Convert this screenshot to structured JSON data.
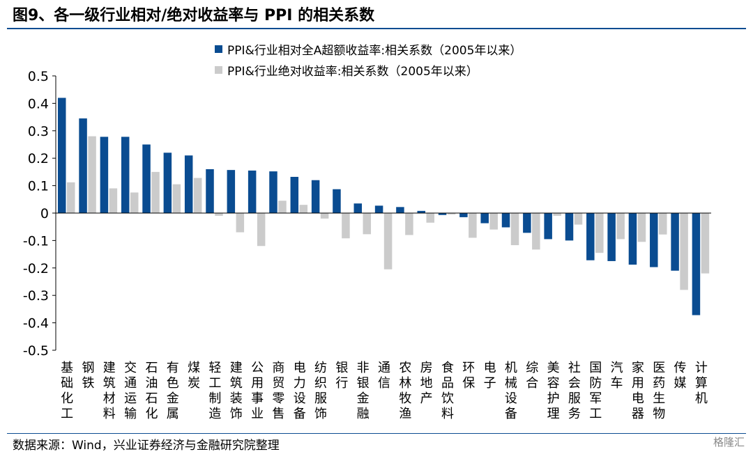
{
  "title": "图9、各一级行业相对/绝对收益率与 PPI 的相关系数",
  "source": "数据来源：Wind，兴业证券经济与金融研究院整理",
  "watermark": "格隆汇",
  "colors": {
    "relative": "#0a4c91",
    "absolute": "#cbcbcb",
    "axis": "#000000"
  },
  "chart_data": {
    "type": "bar",
    "title": "",
    "xlabel": "",
    "ylabel": "",
    "ylim": [
      -0.5,
      0.5
    ],
    "yticks": [
      0.5,
      0.4,
      0.3,
      0.2,
      0.1,
      0,
      -0.1,
      -0.2,
      -0.3,
      -0.4,
      -0.5
    ],
    "ytick_labels": [
      "0.5",
      "0.4",
      "0.3",
      "0.2",
      "0.1",
      "0",
      "-0.1",
      "-0.2",
      "-0.3",
      "-0.4",
      "-0.5"
    ],
    "legend_position": "top",
    "categories": [
      "基础化工",
      "钢铁",
      "建筑材料",
      "交通运输",
      "石油石化",
      "有色金属",
      "煤炭",
      "轻工制造",
      "建筑装饰",
      "公用事业",
      "商贸零售",
      "电力设备",
      "纺织服饰",
      "银行",
      "非银金融",
      "通信",
      "农林牧渔",
      "房地产",
      "食品饮料",
      "环保",
      "电子",
      "机械设备",
      "综合",
      "美容护理",
      "社会服务",
      "国防军工",
      "汽车",
      "家用电器",
      "医药生物",
      "传媒",
      "计算机"
    ],
    "series": [
      {
        "name": "PPI&行业相对全A超额收益率:相关系数（2005年以来）",
        "values": [
          0.42,
          0.345,
          0.278,
          0.278,
          0.25,
          0.22,
          0.21,
          0.16,
          0.157,
          0.155,
          0.152,
          0.132,
          0.12,
          0.087,
          0.035,
          0.027,
          0.022,
          0.008,
          -0.007,
          -0.015,
          -0.037,
          -0.052,
          -0.072,
          -0.095,
          -0.1,
          -0.172,
          -0.175,
          -0.188,
          -0.197,
          -0.21,
          -0.372
        ]
      },
      {
        "name": "PPI&行业绝对收益率:相关系数（2005年以来）",
        "values": [
          0.112,
          0.28,
          0.09,
          0.075,
          0.15,
          0.105,
          0.128,
          -0.01,
          -0.07,
          -0.12,
          0.045,
          0.03,
          -0.02,
          -0.092,
          -0.077,
          -0.205,
          -0.08,
          -0.035,
          -0.005,
          -0.09,
          -0.06,
          -0.117,
          -0.133,
          -0.01,
          -0.042,
          -0.145,
          -0.095,
          -0.105,
          -0.078,
          -0.28,
          -0.22
        ]
      }
    ]
  }
}
